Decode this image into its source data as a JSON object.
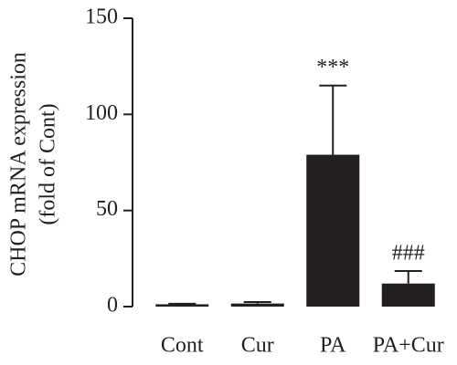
{
  "chart_data": {
    "type": "bar",
    "ylabel": [
      "CHOP mRNA expression",
      "(fold of Cont)"
    ],
    "categories": [
      "Cont",
      "Cur",
      "PA",
      "PA+Cur"
    ],
    "values": [
      1.2,
      1.6,
      79,
      12
    ],
    "errors": [
      0.3,
      0.8,
      36,
      6.5
    ],
    "annotations": [
      null,
      null,
      "***",
      "###"
    ],
    "color": "#231f20",
    "ylim": [
      0,
      150
    ],
    "yticks": [
      0,
      50,
      100,
      150
    ],
    "grid": false
  }
}
